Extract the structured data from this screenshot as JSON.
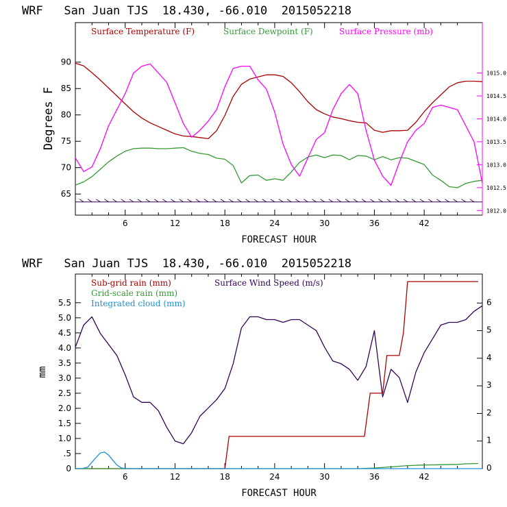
{
  "chart_data": [
    {
      "type": "line",
      "title": "WRF   San Juan TJS  18.430, -66.010  2015052218",
      "xlabel": "FORECAST HOUR",
      "ylabel": "Degrees F",
      "xlim": [
        0,
        49
      ],
      "xticks": [
        6,
        12,
        18,
        24,
        30,
        36,
        42
      ],
      "ylim": [
        61,
        97.5
      ],
      "yticks": [
        65,
        70,
        75,
        80,
        85,
        90
      ],
      "y2lim": [
        1011.9,
        1016.1
      ],
      "y2ticks": [
        "1012.0",
        "1012.5",
        "1013.0",
        "1013.5",
        "1014.0",
        "1014.5",
        "1015.0"
      ],
      "legend_position": "top",
      "series": [
        {
          "name": "Surface Temperature (F)",
          "color": "#aa0000",
          "axis": "left",
          "x": [
            0,
            1,
            2,
            3,
            4,
            5,
            6,
            7,
            8,
            9,
            10,
            11,
            12,
            13,
            14,
            15,
            16,
            17,
            18,
            19,
            20,
            21,
            22,
            23,
            24,
            25,
            26,
            27,
            28,
            29,
            30,
            31,
            32,
            33,
            34,
            35,
            36,
            37,
            38,
            39,
            40,
            41,
            42,
            43,
            44,
            45,
            46,
            47,
            48,
            49
          ],
          "values": [
            89.8,
            89.3,
            88,
            86.6,
            85.1,
            83.6,
            82.1,
            80.6,
            79.4,
            78.5,
            77.8,
            77.1,
            76.4,
            76,
            75.9,
            75.7,
            75.5,
            77,
            79.9,
            83.5,
            85.8,
            86.8,
            87.2,
            87.6,
            87.6,
            87.3,
            86.1,
            84.4,
            82.5,
            81,
            80.2,
            79.6,
            79.3,
            78.9,
            78.6,
            78.5,
            77.1,
            76.7,
            77,
            77,
            77.1,
            78.6,
            80.6,
            82.3,
            83.8,
            85.3,
            86.1,
            86.4,
            86.4,
            86.3
          ]
        },
        {
          "name": "Surface Dewpoint (F)",
          "color": "#339933",
          "axis": "left",
          "x": [
            0,
            1,
            2,
            3,
            4,
            5,
            6,
            7,
            8,
            9,
            10,
            11,
            12,
            13,
            14,
            15,
            16,
            17,
            18,
            19,
            20,
            21,
            22,
            23,
            24,
            25,
            26,
            27,
            28,
            29,
            30,
            31,
            32,
            33,
            34,
            35,
            36,
            37,
            38,
            39,
            40,
            41,
            42,
            43,
            44,
            45,
            46,
            47,
            48,
            49
          ],
          "values": [
            66.7,
            67.3,
            68.3,
            69.7,
            71.1,
            72.2,
            73.1,
            73.6,
            73.7,
            73.7,
            73.6,
            73.6,
            73.7,
            73.8,
            73.1,
            72.7,
            72.5,
            71.8,
            71.6,
            70.4,
            67.1,
            68.5,
            68.6,
            67.6,
            67.9,
            67.6,
            69.2,
            71,
            72,
            72.4,
            71.9,
            72.4,
            72.3,
            71.5,
            72.3,
            72.2,
            71.5,
            72.1,
            71.5,
            71.9,
            71.8,
            71.2,
            70.6,
            68.6,
            67.6,
            66.4,
            66.2,
            67,
            67.4,
            67.6
          ]
        },
        {
          "name": "Surface Pressure (mb)",
          "color": "#ff00ff",
          "axis": "right",
          "x": [
            0,
            1,
            2,
            3,
            4,
            5,
            6,
            7,
            8,
            9,
            10,
            11,
            12,
            13,
            14,
            15,
            16,
            17,
            18,
            19,
            20,
            21,
            22,
            23,
            24,
            25,
            26,
            27,
            28,
            29,
            30,
            31,
            32,
            33,
            34,
            35,
            36,
            37,
            38,
            39,
            40,
            41,
            42,
            43,
            44,
            45,
            46,
            47,
            48,
            49
          ],
          "values": [
            1013.15,
            1012.85,
            1012.95,
            1013.35,
            1013.85,
            1014.2,
            1014.55,
            1015.0,
            1015.15,
            1015.2,
            1015.0,
            1014.8,
            1014.35,
            1013.9,
            1013.6,
            1013.75,
            1013.95,
            1014.2,
            1014.7,
            1015.1,
            1015.15,
            1015.15,
            1014.85,
            1014.65,
            1014.15,
            1013.45,
            1013.0,
            1012.75,
            1013.15,
            1013.55,
            1013.7,
            1014.2,
            1014.55,
            1014.75,
            1014.55,
            1013.75,
            1013.1,
            1012.75,
            1012.55,
            1013.05,
            1013.5,
            1013.75,
            1013.9,
            1014.25,
            1014.3,
            1014.25,
            1014.2,
            1013.85,
            1013.5,
            1012.6
          ]
        }
      ],
      "wind_barbs_y": 63.5
    },
    {
      "type": "line",
      "title": "WRF   San Juan TJS  18.430, -66.010  2015052218",
      "xlabel": "FORECAST HOUR",
      "ylabel": "mm",
      "xlim": [
        0,
        49
      ],
      "xticks": [
        6,
        12,
        18,
        24,
        30,
        36,
        42
      ],
      "ylim": [
        0,
        6.45
      ],
      "yticks": [
        "0",
        ".5",
        "1.0",
        "1.5",
        "2.0",
        "2.5",
        "3.0",
        "3.5",
        "4.0",
        "4.5",
        "5.0",
        "5.5"
      ],
      "y2lim": [
        0,
        7.05
      ],
      "y2ticks": [
        "0",
        "1",
        "2",
        "3",
        "4",
        "5",
        "6"
      ],
      "legend_position": "top-left",
      "series": [
        {
          "name": "Sub-grid rain (mm)",
          "color": "#aa0000",
          "axis": "left",
          "x": [
            0,
            18,
            18.5,
            34.8,
            35.5,
            37.0,
            37.5,
            39.0,
            39.5,
            40.0,
            48.5
          ],
          "values": [
            0,
            0,
            1.07,
            1.07,
            2.5,
            2.5,
            3.75,
            3.75,
            4.5,
            6.2,
            6.2
          ]
        },
        {
          "name": "Grid-scale rain (mm)",
          "color": "#339933",
          "axis": "left",
          "x": [
            0,
            34,
            36,
            38,
            40,
            42,
            44,
            46,
            47,
            48.5
          ],
          "values": [
            0,
            0,
            0.02,
            0.06,
            0.1,
            0.12,
            0.13,
            0.14,
            0.16,
            0.17
          ]
        },
        {
          "name": "Integrated cloud (mm)",
          "color": "#1f8fd6",
          "axis": "left",
          "x": [
            0,
            0.8,
            1.5,
            2.2,
            3.0,
            3.5,
            4.0,
            4.5,
            5.0,
            5.5,
            6.0,
            49
          ],
          "values": [
            0,
            0,
            0.05,
            0.28,
            0.52,
            0.55,
            0.45,
            0.28,
            0.12,
            0.03,
            0,
            0
          ]
        },
        {
          "name": "Surface Wind Speed (m/s)",
          "color": "#330055",
          "axis": "right",
          "x": [
            0,
            1,
            2,
            3,
            4,
            5,
            6,
            7,
            8,
            9,
            10,
            11,
            12,
            13,
            14,
            15,
            16,
            17,
            18,
            19,
            20,
            21,
            22,
            23,
            24,
            25,
            26,
            27,
            28,
            29,
            30,
            31,
            32,
            33,
            34,
            35,
            36,
            37,
            38,
            39,
            40,
            41,
            42,
            43,
            44,
            45,
            46,
            47,
            48,
            49
          ],
          "values": [
            4.4,
            5.2,
            5.5,
            4.9,
            4.5,
            4.1,
            3.4,
            2.6,
            2.4,
            2.4,
            2.1,
            1.5,
            1.0,
            0.9,
            1.3,
            1.9,
            2.2,
            2.5,
            2.9,
            3.8,
            5.1,
            5.5,
            5.5,
            5.4,
            5.4,
            5.3,
            5.4,
            5.4,
            5.2,
            5.0,
            4.4,
            3.9,
            3.8,
            3.6,
            3.2,
            3.7,
            5.0,
            2.6,
            3.6,
            3.3,
            2.4,
            3.5,
            4.2,
            4.7,
            5.2,
            5.3,
            5.3,
            5.4,
            5.7,
            5.9
          ]
        }
      ]
    }
  ]
}
